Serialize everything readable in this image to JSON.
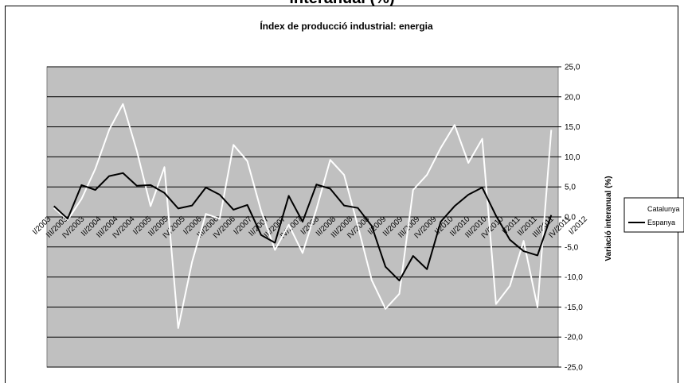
{
  "page_title": "interanual (%)",
  "chart_data": {
    "type": "line",
    "title": "Índex de producció industrial: energia",
    "ylabel": "Variació interanual (%)",
    "ylim": [
      -25,
      25
    ],
    "y_ticks": [
      "25,0",
      "20,0",
      "15,0",
      "10,0",
      "5,0",
      "0,0",
      "-5,0",
      "-10,0",
      "-15,0",
      "-20,0",
      "-25,0"
    ],
    "y_tick_values": [
      25,
      20,
      15,
      10,
      5,
      0,
      -5,
      -10,
      -15,
      -20,
      -25
    ],
    "categories": [
      "I/2003",
      "II/2003",
      "III/2003",
      "IV/2003",
      "I/2004",
      "II/2004",
      "III/2004",
      "IV/2004",
      "I/2005",
      "II/2005",
      "III/2005",
      "IV/2005",
      "I/2006",
      "II/2006",
      "III/2006",
      "IV/2006",
      "I/2007",
      "II/2007",
      "III/2007",
      "IV/2007",
      "I/2008",
      "II/2008",
      "III/2008",
      "IV/2008",
      "I/2009",
      "II/2009",
      "III/2009",
      "IV/2009",
      "I/2010",
      "II/2010",
      "III/2010",
      "IV/2010",
      "I/2011",
      "II/2011",
      "III/2011",
      "IV/2011",
      "I/2012"
    ],
    "x_labels": [
      "I/2003",
      "",
      "III/2003",
      "",
      "IV/2003",
      "",
      "II/2004",
      "",
      "III/2004",
      "",
      "IV/2004",
      "",
      "I/2005",
      "",
      "II/2005",
      "",
      "IV/2005",
      "",
      "I/2006",
      "",
      "III/2006",
      "",
      "IV/2006",
      "",
      "I/2007",
      "",
      "II/2007",
      "",
      "III/2007",
      "",
      "IV/2007",
      "",
      "I/2008",
      "",
      "II/2008",
      "",
      "III/2008",
      "",
      "IV/2008",
      "",
      "I/2009",
      "",
      "II/2009",
      "",
      "III/2009",
      "",
      "IV/2009",
      "",
      "I/2010",
      "",
      "II/2010",
      "",
      "III/2010",
      "",
      "IV/2010",
      "",
      "I/2011",
      "",
      "II/2011",
      "",
      "III/2011",
      "",
      "IV/2011",
      "",
      "I/2012"
    ],
    "x_count": 61,
    "series": [
      {
        "name": "Catalunya",
        "color": "#ffffff",
        "values": [
          1.5,
          -0.5,
          3.0,
          8.0,
          14.5,
          18.8,
          11.0,
          1.8,
          8.3,
          -18.5,
          -7.5,
          0.5,
          -0.3,
          12.0,
          9.3,
          1.0,
          -5.5,
          -1.3,
          -6.0,
          1.3,
          9.5,
          7.0,
          -1.5,
          -10.5,
          -15.3,
          -12.8,
          4.5,
          7.0,
          11.5,
          15.3,
          9.0,
          13.0,
          -14.5,
          -11.5,
          -4.0,
          -15.0,
          14.5
        ]
      },
      {
        "name": "Espanya",
        "color": "#000000",
        "values": [
          1.8,
          -0.3,
          5.3,
          4.5,
          6.8,
          7.3,
          5.2,
          5.3,
          4.0,
          1.4,
          1.9,
          4.9,
          3.7,
          1.2,
          2.0,
          -3.0,
          -4.3,
          3.5,
          -0.8,
          5.4,
          4.7,
          1.9,
          1.5,
          -1.5,
          -8.3,
          -10.6,
          -6.5,
          -8.7,
          -0.8,
          1.8,
          3.7,
          4.9,
          0.2,
          -3.8,
          -5.7,
          -6.4,
          0.3
        ]
      }
    ],
    "grid": true,
    "legend_position": "right",
    "plot_background": "#c0c0c0"
  }
}
